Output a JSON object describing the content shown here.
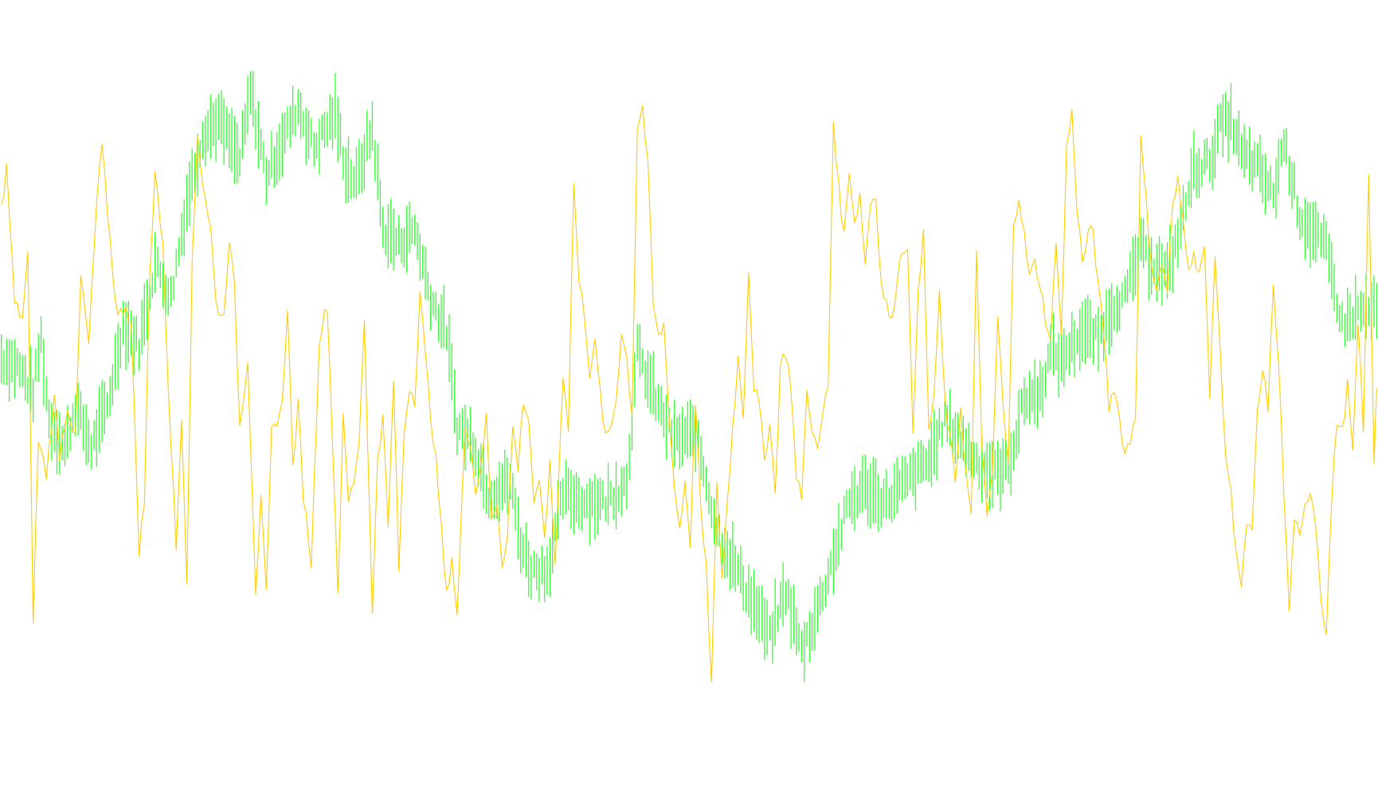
{
  "chart_data": {
    "type": "line",
    "title": "",
    "xlabel": "",
    "ylabel": "",
    "grid": false,
    "legend": "none",
    "x_count": 520,
    "ylim": [
      0,
      100
    ],
    "series": [
      {
        "style": "bars",
        "color": "#33ff33",
        "anchors": [
          [
            0,
            52
          ],
          [
            6,
            51
          ],
          [
            12,
            47
          ],
          [
            15,
            55
          ],
          [
            18,
            43
          ],
          [
            24,
            39
          ],
          [
            28,
            45
          ],
          [
            34,
            39
          ],
          [
            40,
            45
          ],
          [
            46,
            57
          ],
          [
            52,
            54
          ],
          [
            58,
            66
          ],
          [
            64,
            61
          ],
          [
            70,
            75
          ],
          [
            76,
            85
          ],
          [
            82,
            87
          ],
          [
            90,
            81
          ],
          [
            94,
            91
          ],
          [
            100,
            79
          ],
          [
            106,
            84
          ],
          [
            112,
            89
          ],
          [
            118,
            83
          ],
          [
            126,
            88
          ],
          [
            130,
            80
          ],
          [
            134,
            78
          ],
          [
            140,
            86
          ],
          [
            144,
            71
          ],
          [
            150,
            69
          ],
          [
            156,
            71
          ],
          [
            162,
            61
          ],
          [
            168,
            56
          ],
          [
            172,
            42
          ],
          [
            178,
            40
          ],
          [
            184,
            32
          ],
          [
            192,
            34
          ],
          [
            196,
            25
          ],
          [
            200,
            21
          ],
          [
            206,
            21
          ],
          [
            212,
            32
          ],
          [
            220,
            31
          ],
          [
            228,
            31
          ],
          [
            236,
            34
          ],
          [
            240,
            53
          ],
          [
            248,
            45
          ],
          [
            254,
            40
          ],
          [
            262,
            41
          ],
          [
            270,
            27
          ],
          [
            280,
            19
          ],
          [
            290,
            11
          ],
          [
            296,
            18
          ],
          [
            302,
            9
          ],
          [
            308,
            15
          ],
          [
            314,
            23
          ],
          [
            320,
            31
          ],
          [
            326,
            33
          ],
          [
            334,
            31
          ],
          [
            342,
            34
          ],
          [
            350,
            37
          ],
          [
            356,
            43
          ],
          [
            362,
            40
          ],
          [
            368,
            37
          ],
          [
            374,
            35
          ],
          [
            380,
            36
          ],
          [
            386,
            46
          ],
          [
            392,
            47
          ],
          [
            396,
            53
          ],
          [
            400,
            52
          ],
          [
            408,
            56
          ],
          [
            414,
            55
          ],
          [
            420,
            60
          ],
          [
            424,
            61
          ],
          [
            430,
            68
          ],
          [
            440,
            64
          ],
          [
            446,
            73
          ],
          [
            450,
            80
          ],
          [
            456,
            81
          ],
          [
            460,
            86
          ],
          [
            464,
            87
          ],
          [
            468,
            82
          ],
          [
            474,
            80
          ],
          [
            480,
            76
          ],
          [
            484,
            84
          ],
          [
            490,
            73
          ],
          [
            494,
            71
          ],
          [
            500,
            68
          ],
          [
            506,
            57
          ],
          [
            512,
            59
          ],
          [
            519,
            59
          ]
        ]
      },
      {
        "style": "line",
        "color": "#ffcc00",
        "anchors": [
          [
            0,
            74
          ],
          [
            2,
            80
          ],
          [
            5,
            60
          ],
          [
            8,
            58
          ],
          [
            10,
            67
          ],
          [
            12,
            14
          ],
          [
            14,
            40
          ],
          [
            17,
            35
          ],
          [
            20,
            46
          ],
          [
            22,
            38
          ],
          [
            25,
            45
          ],
          [
            28,
            40
          ],
          [
            30,
            64
          ],
          [
            33,
            54
          ],
          [
            36,
            75
          ],
          [
            38,
            83
          ],
          [
            40,
            74
          ],
          [
            42,
            65
          ],
          [
            44,
            58
          ],
          [
            47,
            60
          ],
          [
            49,
            57
          ],
          [
            52,
            24
          ],
          [
            54,
            31
          ],
          [
            56,
            64
          ],
          [
            58,
            80
          ],
          [
            61,
            68
          ],
          [
            63,
            48
          ],
          [
            66,
            24
          ],
          [
            68,
            44
          ],
          [
            70,
            20
          ],
          [
            72,
            65
          ],
          [
            74,
            85
          ],
          [
            76,
            78
          ],
          [
            79,
            71
          ],
          [
            81,
            60
          ],
          [
            84,
            58
          ],
          [
            86,
            70
          ],
          [
            88,
            62
          ],
          [
            90,
            42
          ],
          [
            93,
            52
          ],
          [
            96,
            18
          ],
          [
            98,
            31
          ],
          [
            100,
            17
          ],
          [
            102,
            41
          ],
          [
            104,
            43
          ],
          [
            106,
            45
          ],
          [
            108,
            60
          ],
          [
            110,
            36
          ],
          [
            112,
            45
          ],
          [
            114,
            32
          ],
          [
            117,
            22
          ],
          [
            120,
            55
          ],
          [
            123,
            60
          ],
          [
            125,
            40
          ],
          [
            127,
            18
          ],
          [
            129,
            43
          ],
          [
            131,
            31
          ],
          [
            133,
            34
          ],
          [
            135,
            40
          ],
          [
            137,
            58
          ],
          [
            140,
            14
          ],
          [
            142,
            38
          ],
          [
            144,
            43
          ],
          [
            146,
            27
          ],
          [
            148,
            49
          ],
          [
            150,
            21
          ],
          [
            152,
            41
          ],
          [
            154,
            48
          ],
          [
            156,
            46
          ],
          [
            158,
            62
          ],
          [
            160,
            52
          ],
          [
            162,
            44
          ],
          [
            164,
            37
          ],
          [
            166,
            27
          ],
          [
            168,
            17
          ],
          [
            170,
            23
          ],
          [
            172,
            14
          ],
          [
            175,
            42
          ],
          [
            177,
            40
          ],
          [
            179,
            32
          ],
          [
            181,
            37
          ],
          [
            183,
            43
          ],
          [
            185,
            28
          ],
          [
            187,
            31
          ],
          [
            189,
            22
          ],
          [
            191,
            26
          ],
          [
            193,
            42
          ],
          [
            195,
            36
          ],
          [
            197,
            46
          ],
          [
            199,
            43
          ],
          [
            201,
            31
          ],
          [
            203,
            33
          ],
          [
            205,
            26
          ],
          [
            207,
            36
          ],
          [
            209,
            22
          ],
          [
            212,
            50
          ],
          [
            214,
            42
          ],
          [
            216,
            78
          ],
          [
            218,
            63
          ],
          [
            220,
            59
          ],
          [
            222,
            50
          ],
          [
            224,
            54
          ],
          [
            226,
            47
          ],
          [
            228,
            40
          ],
          [
            230,
            42
          ],
          [
            232,
            46
          ],
          [
            234,
            56
          ],
          [
            236,
            52
          ],
          [
            238,
            44
          ],
          [
            240,
            86
          ],
          [
            242,
            89
          ],
          [
            244,
            80
          ],
          [
            246,
            60
          ],
          [
            248,
            55
          ],
          [
            250,
            57
          ],
          [
            252,
            44
          ],
          [
            254,
            33
          ],
          [
            256,
            27
          ],
          [
            258,
            34
          ],
          [
            260,
            25
          ],
          [
            262,
            46
          ],
          [
            264,
            29
          ],
          [
            266,
            21
          ],
          [
            268,
            4
          ],
          [
            270,
            33
          ],
          [
            272,
            20
          ],
          [
            274,
            31
          ],
          [
            276,
            42
          ],
          [
            278,
            52
          ],
          [
            280,
            44
          ],
          [
            282,
            65
          ],
          [
            284,
            48
          ],
          [
            286,
            45
          ],
          [
            288,
            37
          ],
          [
            290,
            43
          ],
          [
            292,
            32
          ],
          [
            294,
            51
          ],
          [
            296,
            53
          ],
          [
            298,
            48
          ],
          [
            300,
            34
          ],
          [
            302,
            32
          ],
          [
            304,
            47
          ],
          [
            306,
            42
          ],
          [
            308,
            38
          ],
          [
            310,
            44
          ],
          [
            312,
            48
          ],
          [
            314,
            87
          ],
          [
            316,
            77
          ],
          [
            318,
            70
          ],
          [
            320,
            80
          ],
          [
            322,
            72
          ],
          [
            324,
            76
          ],
          [
            326,
            66
          ],
          [
            328,
            75
          ],
          [
            330,
            76
          ],
          [
            332,
            63
          ],
          [
            334,
            60
          ],
          [
            336,
            57
          ],
          [
            338,
            64
          ],
          [
            340,
            68
          ],
          [
            342,
            69
          ],
          [
            344,
            40
          ],
          [
            346,
            63
          ],
          [
            348,
            70
          ],
          [
            350,
            41
          ],
          [
            352,
            47
          ],
          [
            354,
            61
          ],
          [
            356,
            46
          ],
          [
            358,
            40
          ],
          [
            360,
            34
          ],
          [
            362,
            45
          ],
          [
            364,
            35
          ],
          [
            366,
            29
          ],
          [
            368,
            67
          ],
          [
            370,
            40
          ],
          [
            372,
            28
          ],
          [
            374,
            35
          ],
          [
            376,
            58
          ],
          [
            378,
            45
          ],
          [
            380,
            36
          ],
          [
            382,
            72
          ],
          [
            384,
            76
          ],
          [
            386,
            70
          ],
          [
            388,
            64
          ],
          [
            390,
            66
          ],
          [
            392,
            63
          ],
          [
            394,
            58
          ],
          [
            396,
            54
          ],
          [
            398,
            70
          ],
          [
            400,
            55
          ],
          [
            402,
            83
          ],
          [
            404,
            88
          ],
          [
            406,
            74
          ],
          [
            408,
            66
          ],
          [
            410,
            70
          ],
          [
            412,
            71
          ],
          [
            414,
            62
          ],
          [
            416,
            56
          ],
          [
            418,
            45
          ],
          [
            420,
            48
          ],
          [
            422,
            43
          ],
          [
            424,
            38
          ],
          [
            426,
            40
          ],
          [
            428,
            44
          ],
          [
            430,
            84
          ],
          [
            432,
            75
          ],
          [
            434,
            66
          ],
          [
            436,
            62
          ],
          [
            438,
            66
          ],
          [
            440,
            62
          ],
          [
            442,
            74
          ],
          [
            444,
            78
          ],
          [
            446,
            72
          ],
          [
            448,
            66
          ],
          [
            450,
            67
          ],
          [
            452,
            65
          ],
          [
            454,
            68
          ],
          [
            456,
            46
          ],
          [
            458,
            68
          ],
          [
            460,
            52
          ],
          [
            462,
            38
          ],
          [
            464,
            32
          ],
          [
            466,
            24
          ],
          [
            468,
            18
          ],
          [
            470,
            28
          ],
          [
            472,
            26
          ],
          [
            474,
            44
          ],
          [
            476,
            50
          ],
          [
            478,
            45
          ],
          [
            480,
            62
          ],
          [
            482,
            52
          ],
          [
            484,
            32
          ],
          [
            486,
            15
          ],
          [
            488,
            29
          ],
          [
            490,
            25
          ],
          [
            492,
            30
          ],
          [
            494,
            33
          ],
          [
            496,
            28
          ],
          [
            498,
            17
          ],
          [
            500,
            12
          ],
          [
            502,
            31
          ],
          [
            504,
            43
          ],
          [
            506,
            41
          ],
          [
            508,
            48
          ],
          [
            510,
            38
          ],
          [
            512,
            57
          ],
          [
            514,
            42
          ],
          [
            516,
            79
          ],
          [
            518,
            37
          ],
          [
            519,
            48
          ]
        ]
      }
    ]
  }
}
